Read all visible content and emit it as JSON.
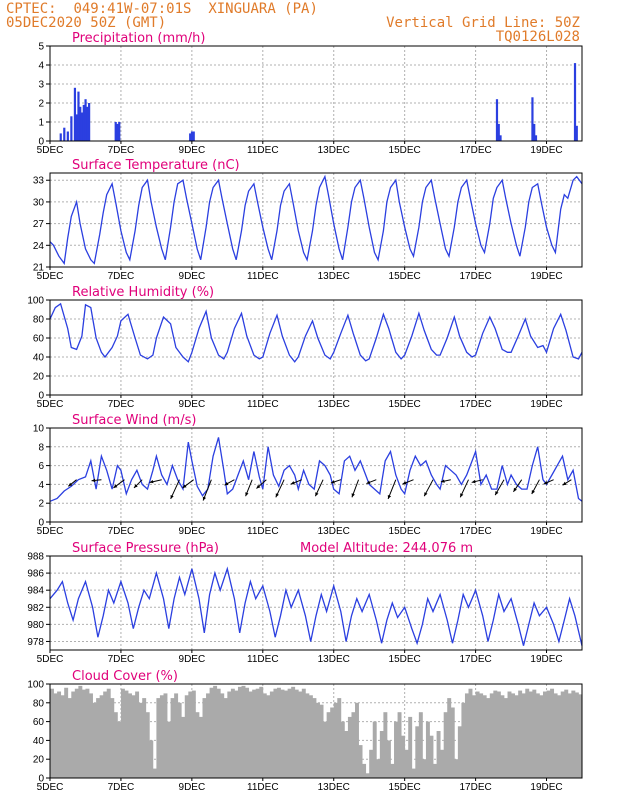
{
  "header": {
    "source": "CPTEC:",
    "coords": "049:41W-07:01S",
    "location": "XINGUARA (PA)",
    "date": "05DEC2020 50Z (GMT)",
    "grid_note": "Vertical Grid Line: 50Z",
    "model": "TQ0126L028",
    "accent_color": "#e07b2a",
    "title_color": "#e0007a",
    "series_color": "#2b3fe0"
  },
  "x_axis": {
    "day_start": 5,
    "day_end": 20,
    "tick_days": [
      5,
      7,
      9,
      11,
      13,
      15,
      17,
      19
    ],
    "tick_labels": [
      "5DEC",
      "7DEC",
      "9DEC",
      "11DEC",
      "13DEC",
      "15DEC",
      "17DEC",
      "19DEC"
    ]
  },
  "chart_data": [
    {
      "id": "precip",
      "type": "bar",
      "title": "Precipitation (mm/h)",
      "ylim": [
        0,
        5
      ],
      "yticks": [
        0,
        1,
        2,
        3,
        4,
        5
      ],
      "x": [
        5.3,
        5.4,
        5.5,
        5.6,
        5.7,
        5.75,
        5.8,
        5.85,
        5.9,
        5.95,
        6.0,
        6.05,
        6.1,
        6.85,
        6.9,
        6.95,
        8.95,
        9.0,
        9.05,
        17.6,
        17.65,
        17.7,
        18.6,
        18.65,
        18.7,
        19.8,
        19.85
      ],
      "values": [
        0.4,
        0.7,
        0.5,
        1.3,
        2.8,
        1.4,
        2.6,
        1.8,
        1.5,
        1.9,
        2.2,
        1.8,
        2.0,
        1.0,
        0.9,
        1.0,
        0.4,
        0.5,
        0.5,
        2.2,
        0.9,
        0.3,
        2.3,
        0.9,
        0.3,
        4.1,
        0.8
      ]
    },
    {
      "id": "temp",
      "type": "line",
      "title": "Surface Temperature (nC)",
      "ylim": [
        21,
        34
      ],
      "yticks": [
        21,
        24,
        27,
        30,
        33
      ],
      "x": [
        5.0,
        5.1,
        5.25,
        5.4,
        5.5,
        5.6,
        5.75,
        5.85,
        6.0,
        6.15,
        6.25,
        6.4,
        6.5,
        6.6,
        6.75,
        6.85,
        7.0,
        7.15,
        7.25,
        7.4,
        7.5,
        7.6,
        7.75,
        7.85,
        8.0,
        8.15,
        8.25,
        8.4,
        8.5,
        8.6,
        8.75,
        8.85,
        9.0,
        9.15,
        9.25,
        9.4,
        9.5,
        9.6,
        9.75,
        9.85,
        10.0,
        10.15,
        10.25,
        10.4,
        10.5,
        10.6,
        10.75,
        10.85,
        11.0,
        11.15,
        11.25,
        11.4,
        11.5,
        11.6,
        11.75,
        11.85,
        12.0,
        12.15,
        12.25,
        12.4,
        12.5,
        12.6,
        12.75,
        12.85,
        13.0,
        13.15,
        13.25,
        13.4,
        13.5,
        13.6,
        13.75,
        13.85,
        14.0,
        14.15,
        14.25,
        14.4,
        14.5,
        14.6,
        14.75,
        14.85,
        15.0,
        15.15,
        15.25,
        15.4,
        15.5,
        15.6,
        15.75,
        15.85,
        16.0,
        16.15,
        16.25,
        16.4,
        16.5,
        16.6,
        16.75,
        16.85,
        17.0,
        17.15,
        17.25,
        17.4,
        17.5,
        17.6,
        17.75,
        17.85,
        18.0,
        18.15,
        18.25,
        18.4,
        18.5,
        18.6,
        18.75,
        18.85,
        19.0,
        19.15,
        19.25,
        19.4,
        19.5,
        19.6,
        19.75,
        19.85,
        20.0
      ],
      "values": [
        24.5,
        24.0,
        22.5,
        21.5,
        25.0,
        28.0,
        30.0,
        27.0,
        23.5,
        22.0,
        21.5,
        25.5,
        28.5,
        31.0,
        32.5,
        30.0,
        26.0,
        23.0,
        22.0,
        26.0,
        29.5,
        32.0,
        33.0,
        30.0,
        26.5,
        23.5,
        22.0,
        26.5,
        30.0,
        32.5,
        33.0,
        30.5,
        27.0,
        23.5,
        22.0,
        26.5,
        30.0,
        32.0,
        33.0,
        30.5,
        27.0,
        23.5,
        22.0,
        26.0,
        29.5,
        31.5,
        32.5,
        30.0,
        26.5,
        23.5,
        22.0,
        26.0,
        29.5,
        31.5,
        32.5,
        30.0,
        26.0,
        23.0,
        22.0,
        26.0,
        29.5,
        32.0,
        33.5,
        31.0,
        27.0,
        23.5,
        22.0,
        26.5,
        30.0,
        32.0,
        33.0,
        30.5,
        26.5,
        23.0,
        22.0,
        26.0,
        30.0,
        32.0,
        33.0,
        30.0,
        26.5,
        23.5,
        22.5,
        26.5,
        30.0,
        32.0,
        33.0,
        30.5,
        27.0,
        23.5,
        22.5,
        26.5,
        30.0,
        32.0,
        33.0,
        30.5,
        27.0,
        24.0,
        23.0,
        27.0,
        30.5,
        32.0,
        33.0,
        30.5,
        27.0,
        24.0,
        22.5,
        26.5,
        30.0,
        32.0,
        32.5,
        30.0,
        26.5,
        24.0,
        23.0,
        29.0,
        31.0,
        30.5,
        33.0,
        33.5,
        32.5
      ]
    },
    {
      "id": "rh",
      "type": "line",
      "title": "Relative Humidity (%)",
      "ylim": [
        0,
        100
      ],
      "yticks": [
        0,
        20,
        40,
        60,
        80,
        100
      ],
      "x": [
        5.0,
        5.15,
        5.3,
        5.5,
        5.6,
        5.75,
        5.9,
        6.0,
        6.15,
        6.3,
        6.45,
        6.55,
        6.75,
        6.9,
        7.0,
        7.2,
        7.4,
        7.55,
        7.75,
        7.9,
        8.0,
        8.2,
        8.4,
        8.55,
        8.75,
        8.9,
        9.0,
        9.2,
        9.4,
        9.55,
        9.75,
        9.9,
        10.0,
        10.2,
        10.4,
        10.55,
        10.75,
        10.9,
        11.0,
        11.2,
        11.4,
        11.55,
        11.75,
        11.9,
        12.0,
        12.2,
        12.4,
        12.55,
        12.75,
        12.9,
        13.0,
        13.2,
        13.4,
        13.55,
        13.75,
        13.9,
        14.0,
        14.2,
        14.4,
        14.55,
        14.75,
        14.9,
        15.0,
        15.2,
        15.4,
        15.55,
        15.75,
        15.9,
        16.0,
        16.2,
        16.4,
        16.55,
        16.75,
        16.9,
        17.0,
        17.2,
        17.4,
        17.55,
        17.75,
        17.9,
        18.0,
        18.2,
        18.4,
        18.55,
        18.75,
        18.9,
        19.0,
        19.2,
        19.4,
        19.55,
        19.75,
        19.9,
        20.0
      ],
      "values": [
        80,
        92,
        96,
        70,
        50,
        48,
        62,
        95,
        92,
        60,
        45,
        40,
        50,
        62,
        78,
        85,
        60,
        42,
        38,
        42,
        60,
        82,
        75,
        50,
        40,
        35,
        45,
        70,
        88,
        60,
        42,
        38,
        45,
        70,
        86,
        62,
        42,
        38,
        40,
        65,
        84,
        62,
        42,
        35,
        40,
        62,
        78,
        60,
        42,
        38,
        45,
        65,
        84,
        65,
        42,
        36,
        38,
        60,
        85,
        70,
        45,
        38,
        42,
        62,
        86,
        68,
        48,
        42,
        42,
        60,
        82,
        62,
        45,
        40,
        42,
        65,
        82,
        70,
        48,
        45,
        45,
        62,
        80,
        62,
        50,
        52,
        45,
        70,
        85,
        68,
        40,
        38,
        45
      ]
    },
    {
      "id": "wind",
      "type": "line",
      "title": "Surface Wind (m/s)",
      "ylim": [
        0,
        10
      ],
      "yticks": [
        0,
        2,
        4,
        6,
        8,
        10
      ],
      "x": [
        5.0,
        5.2,
        5.4,
        5.6,
        5.8,
        6.0,
        6.15,
        6.3,
        6.45,
        6.6,
        6.75,
        6.9,
        7.0,
        7.15,
        7.3,
        7.45,
        7.6,
        7.75,
        7.9,
        8.0,
        8.15,
        8.3,
        8.45,
        8.6,
        8.75,
        8.9,
        9.0,
        9.15,
        9.3,
        9.45,
        9.6,
        9.75,
        9.9,
        10.0,
        10.15,
        10.3,
        10.45,
        10.6,
        10.75,
        10.9,
        11.0,
        11.15,
        11.3,
        11.45,
        11.6,
        11.75,
        11.9,
        12.0,
        12.15,
        12.3,
        12.45,
        12.6,
        12.75,
        12.9,
        13.0,
        13.15,
        13.3,
        13.45,
        13.6,
        13.75,
        13.9,
        14.0,
        14.15,
        14.3,
        14.45,
        14.6,
        14.75,
        14.9,
        15.0,
        15.15,
        15.3,
        15.45,
        15.6,
        15.75,
        15.9,
        16.0,
        16.15,
        16.3,
        16.45,
        16.6,
        16.75,
        16.9,
        17.0,
        17.15,
        17.3,
        17.45,
        17.6,
        17.75,
        17.9,
        18.0,
        18.15,
        18.3,
        18.45,
        18.6,
        18.75,
        18.9,
        19.0,
        19.15,
        19.3,
        19.45,
        19.6,
        19.75,
        19.9,
        20.0
      ],
      "values": [
        2.2,
        2.5,
        3.3,
        3.8,
        4.5,
        4.8,
        6.5,
        3.5,
        7.0,
        5.5,
        3.5,
        6.0,
        5.5,
        3.0,
        4.5,
        5.5,
        4.0,
        3.5,
        5.5,
        7.0,
        5.0,
        4.0,
        6.0,
        4.5,
        3.5,
        8.5,
        6.5,
        3.8,
        2.8,
        3.5,
        7.0,
        9.0,
        5.5,
        3.0,
        3.5,
        5.0,
        6.5,
        4.5,
        7.5,
        4.8,
        3.5,
        8.0,
        5.0,
        3.8,
        5.5,
        6.0,
        5.0,
        3.5,
        5.5,
        4.0,
        3.5,
        6.5,
        6.0,
        5.0,
        3.5,
        3.0,
        6.5,
        7.0,
        5.5,
        6.5,
        5.0,
        4.0,
        3.5,
        3.0,
        6.5,
        7.5,
        5.0,
        3.5,
        3.0,
        5.5,
        7.0,
        6.0,
        6.5,
        5.0,
        4.0,
        3.5,
        6.0,
        5.5,
        5.0,
        4.0,
        5.0,
        6.5,
        7.5,
        4.0,
        5.0,
        3.5,
        3.5,
        6.0,
        4.0,
        5.0,
        4.0,
        3.5,
        3.5,
        6.0,
        8.0,
        4.5,
        4.0,
        5.0,
        6.0,
        7.0,
        4.5,
        5.5,
        2.5,
        2.2
      ]
    },
    {
      "id": "pressure",
      "type": "line",
      "title": "Surface Pressure (hPa)",
      "annotation": "Model Altitude: 244.076 m",
      "ylim": [
        977,
        988
      ],
      "yticks": [
        978,
        980,
        982,
        984,
        986,
        988
      ],
      "x": [
        5.0,
        5.2,
        5.35,
        5.5,
        5.65,
        5.8,
        6.0,
        6.2,
        6.35,
        6.5,
        6.65,
        6.8,
        7.0,
        7.2,
        7.35,
        7.5,
        7.65,
        7.8,
        8.0,
        8.2,
        8.35,
        8.5,
        8.65,
        8.8,
        9.0,
        9.2,
        9.35,
        9.5,
        9.65,
        9.8,
        10.0,
        10.2,
        10.35,
        10.5,
        10.65,
        10.8,
        11.0,
        11.2,
        11.35,
        11.5,
        11.65,
        11.8,
        12.0,
        12.2,
        12.35,
        12.5,
        12.65,
        12.8,
        13.0,
        13.2,
        13.35,
        13.5,
        13.65,
        13.8,
        14.0,
        14.2,
        14.35,
        14.5,
        14.65,
        14.8,
        15.0,
        15.2,
        15.35,
        15.5,
        15.65,
        15.8,
        16.0,
        16.2,
        16.35,
        16.5,
        16.65,
        16.8,
        17.0,
        17.2,
        17.35,
        17.5,
        17.65,
        17.8,
        18.0,
        18.2,
        18.35,
        18.5,
        18.65,
        18.8,
        19.0,
        19.2,
        19.35,
        19.5,
        19.65,
        19.8,
        20.0
      ],
      "values": [
        983.0,
        984.0,
        985.0,
        982.5,
        980.5,
        983.0,
        985.0,
        982.0,
        978.5,
        981.0,
        984.0,
        982.5,
        985.0,
        982.5,
        979.5,
        982.0,
        984.0,
        983.0,
        986.0,
        983.0,
        979.5,
        983.0,
        985.5,
        983.5,
        986.5,
        983.0,
        979.0,
        983.5,
        986.0,
        984.0,
        986.5,
        983.0,
        979.0,
        982.5,
        985.0,
        983.0,
        984.5,
        981.5,
        978.5,
        981.0,
        984.0,
        982.0,
        984.0,
        981.0,
        978.0,
        981.0,
        983.5,
        981.5,
        984.5,
        981.5,
        978.0,
        981.0,
        983.0,
        981.5,
        983.5,
        980.5,
        977.8,
        980.5,
        982.5,
        980.8,
        982.0,
        979.5,
        977.8,
        980.0,
        983.0,
        981.5,
        983.5,
        980.5,
        977.8,
        980.5,
        983.5,
        982.0,
        984.0,
        981.0,
        978.0,
        980.5,
        983.5,
        981.5,
        983.0,
        980.0,
        977.5,
        980.0,
        982.5,
        981.0,
        982.0,
        980.0,
        978.0,
        980.5,
        983.0,
        981.0,
        977.5
      ]
    },
    {
      "id": "cloud",
      "type": "bar",
      "title": "Cloud Cover (%)",
      "ylim": [
        0,
        100
      ],
      "yticks": [
        0,
        20,
        40,
        60,
        80,
        100
      ],
      "x": [
        5.0,
        5.1,
        5.2,
        5.3,
        5.4,
        5.5,
        5.6,
        5.7,
        5.8,
        5.9,
        6.0,
        6.1,
        6.2,
        6.3,
        6.4,
        6.5,
        6.6,
        6.7,
        6.8,
        6.9,
        7.0,
        7.1,
        7.2,
        7.3,
        7.4,
        7.5,
        7.6,
        7.7,
        7.8,
        7.9,
        8.0,
        8.1,
        8.2,
        8.3,
        8.4,
        8.5,
        8.6,
        8.7,
        8.8,
        8.9,
        9.0,
        9.1,
        9.2,
        9.3,
        9.4,
        9.5,
        9.6,
        9.7,
        9.8,
        9.9,
        10.0,
        10.1,
        10.2,
        10.3,
        10.4,
        10.5,
        10.6,
        10.7,
        10.8,
        10.9,
        11.0,
        11.1,
        11.2,
        11.3,
        11.4,
        11.5,
        11.6,
        11.7,
        11.8,
        11.9,
        12.0,
        12.1,
        12.2,
        12.3,
        12.4,
        12.5,
        12.6,
        12.7,
        12.8,
        12.9,
        13.0,
        13.1,
        13.2,
        13.3,
        13.4,
        13.5,
        13.6,
        13.7,
        13.8,
        13.9,
        14.0,
        14.1,
        14.2,
        14.3,
        14.4,
        14.5,
        14.6,
        14.7,
        14.8,
        14.9,
        15.0,
        15.1,
        15.2,
        15.3,
        15.4,
        15.5,
        15.6,
        15.7,
        15.8,
        15.9,
        16.0,
        16.1,
        16.2,
        16.3,
        16.4,
        16.5,
        16.6,
        16.7,
        16.8,
        16.9,
        17.0,
        17.1,
        17.2,
        17.3,
        17.4,
        17.5,
        17.6,
        17.7,
        17.8,
        17.9,
        18.0,
        18.1,
        18.2,
        18.3,
        18.4,
        18.5,
        18.6,
        18.7,
        18.8,
        18.9,
        19.0,
        19.1,
        19.2,
        19.3,
        19.4,
        19.5,
        19.6,
        19.7,
        19.8,
        19.9
      ],
      "values": [
        95,
        90,
        92,
        88,
        96,
        85,
        92,
        95,
        98,
        94,
        95,
        90,
        80,
        85,
        88,
        92,
        95,
        85,
        70,
        60,
        95,
        93,
        90,
        88,
        92,
        80,
        85,
        70,
        40,
        10,
        85,
        88,
        90,
        60,
        85,
        90,
        80,
        65,
        88,
        92,
        93,
        70,
        65,
        85,
        90,
        96,
        98,
        95,
        90,
        85,
        92,
        95,
        93,
        97,
        98,
        96,
        92,
        94,
        95,
        97,
        90,
        88,
        92,
        95,
        96,
        94,
        93,
        95,
        97,
        94,
        92,
        95,
        90,
        88,
        85,
        80,
        78,
        60,
        70,
        75,
        80,
        85,
        60,
        50,
        65,
        70,
        80,
        35,
        15,
        5,
        30,
        60,
        20,
        50,
        70,
        40,
        15,
        60,
        70,
        45,
        30,
        65,
        10,
        55,
        70,
        20,
        60,
        45,
        15,
        50,
        30,
        70,
        85,
        75,
        20,
        55,
        80,
        90,
        95,
        88,
        92,
        90,
        88,
        85,
        90,
        93,
        92,
        88,
        85,
        92,
        90,
        88,
        93,
        90,
        95,
        92,
        94,
        90,
        88,
        92,
        93,
        95,
        90,
        88,
        92,
        94,
        90,
        93,
        91,
        89
      ]
    },
    {
      "id": "wind_vectors",
      "type": "scatter",
      "x": [
        5.75,
        6.45,
        7.1,
        7.6,
        8.15,
        8.65,
        9.05,
        9.55,
        10.2,
        10.7,
        11.1,
        11.6,
        12.1,
        12.7,
        13.2,
        13.7,
        14.2,
        14.75,
        15.25,
        15.8,
        16.3,
        16.8,
        17.2,
        17.8,
        18.3,
        18.8,
        19.2,
        19.7
      ],
      "u": [
        -1.5,
        -1.8,
        -2.0,
        -1.5,
        -2.2,
        -1.6,
        -2.0,
        -1.5,
        -1.8,
        -1.2,
        -1.8,
        -1.5,
        -2.0,
        -1.4,
        -1.8,
        -1.2,
        -1.8,
        -1.4,
        -2.0,
        -1.6,
        -1.8,
        -1.5,
        -2.0,
        -1.6,
        -1.5,
        -1.4,
        -1.8,
        -1.6
      ],
      "v": [
        -1.2,
        -0.2,
        -1.5,
        -1.5,
        -0.5,
        -3.5,
        -1.5,
        -3.8,
        -1.0,
        -3.0,
        -1.6,
        -3.2,
        -0.8,
        -3.0,
        -0.6,
        -3.2,
        -0.7,
        -3.5,
        -0.8,
        -3.0,
        -0.4,
        -3.2,
        -0.5,
        -2.8,
        -2.2,
        -2.6,
        -0.8,
        -1.0
      ]
    }
  ]
}
